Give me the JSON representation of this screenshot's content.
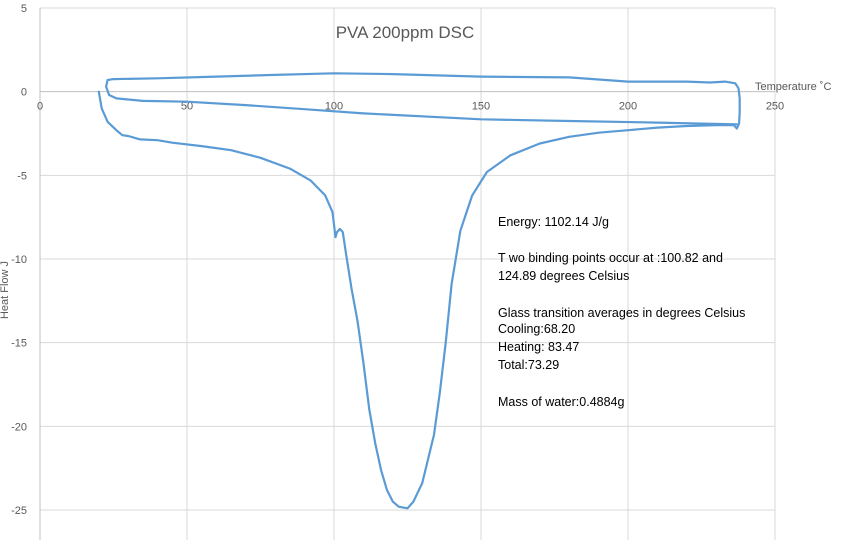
{
  "chart_data": {
    "type": "line",
    "title": "PVA 200ppm DSC",
    "xlabel": "Temperature ˚C",
    "ylabel": "Heat Flow J",
    "xlim": [
      0,
      250
    ],
    "ylim": [
      -25,
      5
    ],
    "xticks": [
      0,
      50,
      100,
      150,
      200,
      250
    ],
    "yticks": [
      5,
      0,
      -5,
      -10,
      -15,
      -20,
      -25
    ],
    "grid": true,
    "color": "#5b9bd5",
    "series": [
      {
        "points": [
          [
            20,
            0
          ],
          [
            21,
            -1
          ],
          [
            23,
            -1.8
          ],
          [
            26,
            -2.3
          ],
          [
            28,
            -2.6
          ],
          [
            30,
            -2.65
          ],
          [
            32,
            -2.75
          ],
          [
            34,
            -2.85
          ],
          [
            40,
            -2.9
          ],
          [
            45,
            -3.05
          ],
          [
            55,
            -3.25
          ],
          [
            65,
            -3.5
          ],
          [
            75,
            -3.95
          ],
          [
            85,
            -4.6
          ],
          [
            92,
            -5.3
          ],
          [
            97,
            -6.2
          ],
          [
            99.5,
            -7.2
          ],
          [
            100.5,
            -8.7
          ],
          [
            101,
            -8.4
          ],
          [
            102,
            -8.2
          ],
          [
            103,
            -8.4
          ],
          [
            104,
            -9.6
          ],
          [
            106,
            -11.8
          ],
          [
            108,
            -13.7
          ],
          [
            110,
            -16.2
          ],
          [
            112,
            -19
          ],
          [
            114,
            -21
          ],
          [
            116,
            -22.6
          ],
          [
            118,
            -23.8
          ],
          [
            120,
            -24.5
          ],
          [
            122,
            -24.8
          ],
          [
            125,
            -24.9
          ],
          [
            127,
            -24.5
          ],
          [
            130,
            -23.4
          ],
          [
            134,
            -20.5
          ],
          [
            136,
            -18
          ],
          [
            138,
            -15
          ],
          [
            140,
            -11.5
          ],
          [
            143,
            -8.3
          ],
          [
            147,
            -6.2
          ],
          [
            152,
            -4.8
          ],
          [
            160,
            -3.8
          ],
          [
            170,
            -3.1
          ],
          [
            180,
            -2.7
          ],
          [
            190,
            -2.45
          ],
          [
            200,
            -2.3
          ],
          [
            210,
            -2.15
          ],
          [
            220,
            -2.05
          ],
          [
            230,
            -2.0
          ],
          [
            236,
            -2.0
          ],
          [
            237,
            -2.2
          ],
          [
            237.8,
            -1.9
          ],
          [
            238,
            -1.2
          ],
          [
            238,
            -0.4
          ],
          [
            237.6,
            0.2
          ],
          [
            236.5,
            0.5
          ],
          [
            233,
            0.6
          ],
          [
            228,
            0.55
          ],
          [
            220,
            0.6
          ],
          [
            200,
            0.6
          ],
          [
            180,
            0.85
          ],
          [
            150,
            0.9
          ],
          [
            120,
            1.05
          ],
          [
            100,
            1.1
          ],
          [
            80,
            1.0
          ],
          [
            60,
            0.9
          ],
          [
            40,
            0.8
          ],
          [
            25,
            0.75
          ],
          [
            23,
            0.7
          ],
          [
            22.5,
            0.3
          ],
          [
            23.5,
            -0.2
          ],
          [
            26,
            -0.4
          ],
          [
            35,
            -0.55
          ],
          [
            50,
            -0.6
          ],
          [
            70,
            -0.8
          ],
          [
            90,
            -1.05
          ],
          [
            110,
            -1.3
          ],
          [
            150,
            -1.65
          ],
          [
            180,
            -1.75
          ],
          [
            210,
            -1.85
          ],
          [
            237,
            -1.95
          ]
        ]
      }
    ],
    "annotations": [
      "Energy: 1102.14  J/g",
      "T wo binding points occur at :100.82  and",
      "124.89  degrees Celsius",
      "Glass transition averages in degrees Celsius",
      "Cooling:68.20",
      "Heating: 83.47",
      "Total:73.29",
      "Mass of water:0.4884g"
    ]
  }
}
